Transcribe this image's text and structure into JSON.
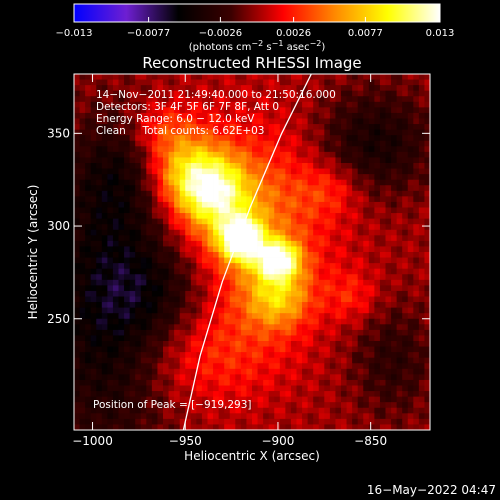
{
  "chart_data": {
    "type": "heatmap",
    "title": "Reconstructed RHESSI Image",
    "xlabel": "Heliocentric X (arcsec)",
    "ylabel": "Heliocentric Y (arcsec)",
    "xlim": [
      -1010,
      -818
    ],
    "ylim": [
      190,
      382
    ],
    "x_ticks": [
      -1000,
      -950,
      -900,
      -850
    ],
    "y_ticks": [
      250,
      300,
      350
    ],
    "colorbar": {
      "range": [
        -0.013,
        0.013
      ],
      "ticks": [
        -0.013,
        -0.0077,
        -0.0026,
        0.0026,
        0.0077,
        0.013
      ],
      "tick_labels": [
        "−0.013",
        "−0.0077",
        "−0.0026",
        "0.0026",
        "0.0077",
        "0.013"
      ],
      "unit_label_parts": [
        "(photons cm",
        "−2",
        " s",
        "−1",
        " asec",
        "−2",
        ")"
      ],
      "colors": [
        "#0000ff",
        "#6e1fd2",
        "#000000",
        "#3a0000",
        "#ff0000",
        "#ff8a00",
        "#ffff00",
        "#ffffff"
      ]
    },
    "sources": [
      {
        "x": -920,
        "y": 293,
        "amplitude": 0.0125,
        "sigma_x": 8,
        "sigma_y": 8
      },
      {
        "x": -900,
        "y": 282,
        "amplitude": 0.0108,
        "sigma_x": 8,
        "sigma_y": 7
      },
      {
        "x": -935,
        "y": 318,
        "amplitude": 0.0082,
        "sigma_x": 13,
        "sigma_y": 13
      },
      {
        "x": -950,
        "y": 330,
        "amplitude": 0.006,
        "sigma_x": 14,
        "sigma_y": 13
      },
      {
        "x": -900,
        "y": 262,
        "amplitude": 0.0058,
        "sigma_x": 12,
        "sigma_y": 12
      },
      {
        "x": -918,
        "y": 300,
        "amplitude": 0.0055,
        "sigma_x": 30,
        "sigma_y": 35
      },
      {
        "x": -962,
        "y": 352,
        "amplitude": 0.0032,
        "sigma_x": 13,
        "sigma_y": 10
      },
      {
        "x": -940,
        "y": 232,
        "amplitude": 0.003,
        "sigma_x": 30,
        "sigma_y": 20
      },
      {
        "x": -872,
        "y": 320,
        "amplitude": 0.0024,
        "sigma_x": 12,
        "sigma_y": 10
      },
      {
        "x": -860,
        "y": 262,
        "amplitude": 0.0024,
        "sigma_x": 10,
        "sigma_y": 10
      },
      {
        "x": -958,
        "y": 265,
        "amplitude": -0.0035,
        "sigma_x": 22,
        "sigma_y": 22
      },
      {
        "x": -848,
        "y": 345,
        "amplitude": -0.0042,
        "sigma_x": 22,
        "sigma_y": 20
      },
      {
        "x": -992,
        "y": 255,
        "amplitude": -0.0055,
        "sigma_x": 25,
        "sigma_y": 55
      },
      {
        "x": -985,
        "y": 328,
        "amplitude": -0.003,
        "sigma_x": 18,
        "sigma_y": 22
      },
      {
        "x": -838,
        "y": 228,
        "amplitude": -0.0028,
        "sigma_x": 16,
        "sigma_y": 22
      }
    ],
    "limb_curve": [
      [
        -951,
        190
      ],
      [
        -942,
        230
      ],
      [
        -930,
        270
      ],
      [
        -915,
        310
      ],
      [
        -898,
        350
      ],
      [
        -882,
        382
      ]
    ],
    "peak": {
      "x": -919,
      "y": 293
    },
    "annotations": [
      "14−Nov−2011 21:49:40.000 to 21:50:16.000",
      "Detectors: 3F 4F 5F 6F 7F 8F, Att 0",
      "Energy Range: 6.0 − 12.0 keV",
      "Clean     Total counts: 6.62E+03"
    ],
    "peak_label": "Position of Peak = [−919,293]"
  },
  "footer": {
    "timestamp": "16−May−2022 04:47"
  }
}
